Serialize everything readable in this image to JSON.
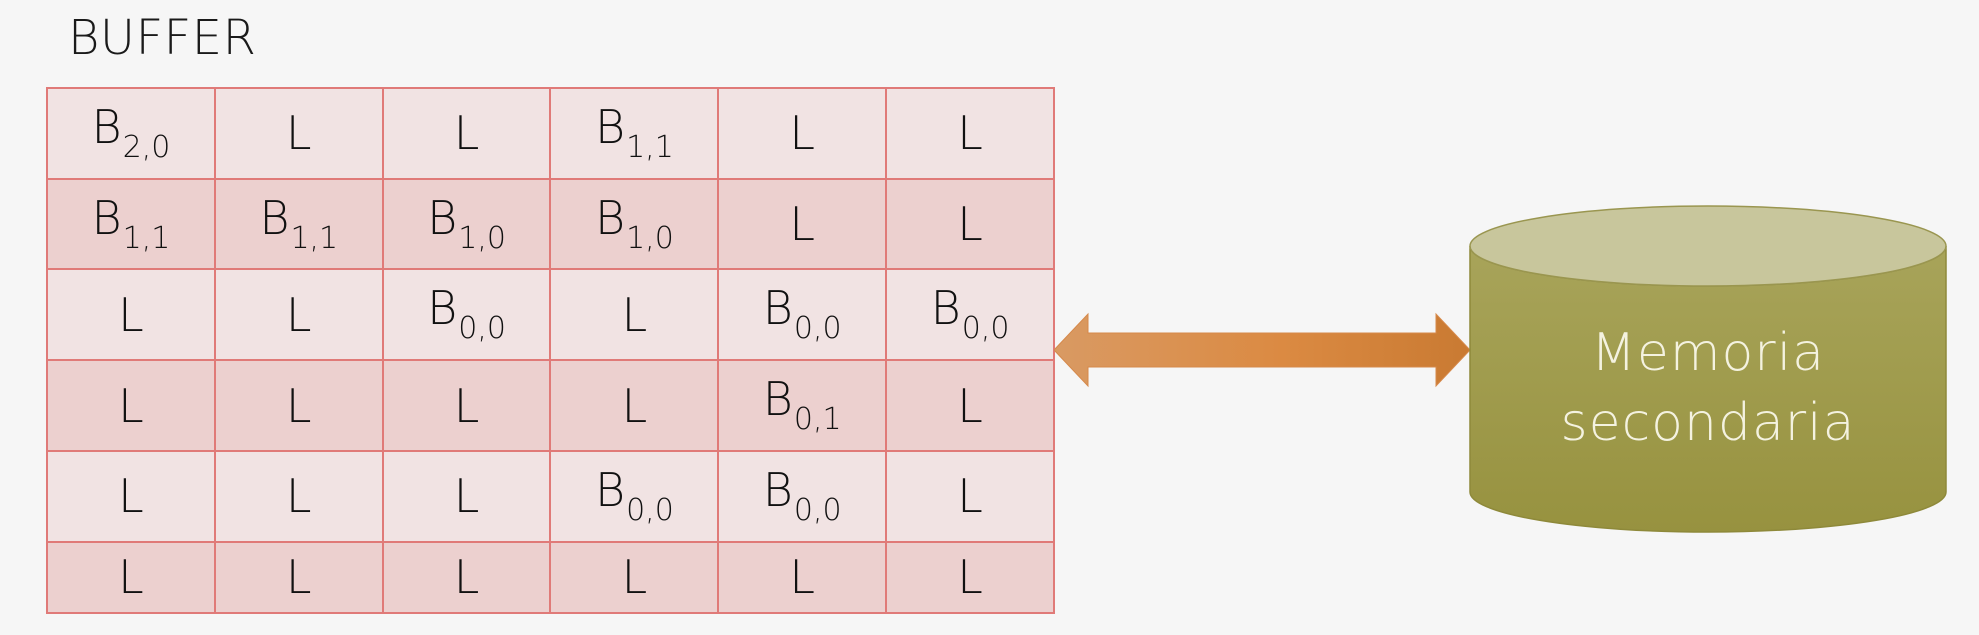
{
  "title": "BUFFER",
  "buffer": {
    "rows": [
      [
        {
          "main": "B",
          "sub": "2,0"
        },
        {
          "main": "L",
          "sub": ""
        },
        {
          "main": "L",
          "sub": ""
        },
        {
          "main": "B",
          "sub": "1,1"
        },
        {
          "main": "L",
          "sub": ""
        },
        {
          "main": "L",
          "sub": ""
        }
      ],
      [
        {
          "main": "B",
          "sub": "1,1"
        },
        {
          "main": "B",
          "sub": "1,1"
        },
        {
          "main": "B",
          "sub": "1,0"
        },
        {
          "main": "B",
          "sub": "1,0"
        },
        {
          "main": "L",
          "sub": ""
        },
        {
          "main": "L",
          "sub": ""
        }
      ],
      [
        {
          "main": "L",
          "sub": ""
        },
        {
          "main": "L",
          "sub": ""
        },
        {
          "main": "B",
          "sub": "0,0"
        },
        {
          "main": "L",
          "sub": ""
        },
        {
          "main": "B",
          "sub": "0,0"
        },
        {
          "main": "B",
          "sub": "0,0"
        }
      ],
      [
        {
          "main": "L",
          "sub": ""
        },
        {
          "main": "L",
          "sub": ""
        },
        {
          "main": "L",
          "sub": ""
        },
        {
          "main": "L",
          "sub": ""
        },
        {
          "main": "B",
          "sub": "0,1"
        },
        {
          "main": "L",
          "sub": ""
        }
      ],
      [
        {
          "main": "L",
          "sub": ""
        },
        {
          "main": "L",
          "sub": ""
        },
        {
          "main": "L",
          "sub": ""
        },
        {
          "main": "B",
          "sub": "0,0"
        },
        {
          "main": "B",
          "sub": "0,0"
        },
        {
          "main": "L",
          "sub": ""
        }
      ],
      [
        {
          "main": "L",
          "sub": ""
        },
        {
          "main": "L",
          "sub": ""
        },
        {
          "main": "L",
          "sub": ""
        },
        {
          "main": "L",
          "sub": ""
        },
        {
          "main": "L",
          "sub": ""
        },
        {
          "main": "L",
          "sub": ""
        }
      ]
    ]
  },
  "storage": {
    "label_line1": "Memoria",
    "label_line2": "secondaria"
  },
  "icons": {
    "arrow": "double-arrow-icon",
    "storage": "cylinder-disk-icon"
  },
  "colors": {
    "cell_border": "#e07a78",
    "row_light": "#f1e3e3",
    "row_dark": "#ecd0cf",
    "arrow_start": "#d99a63",
    "arrow_end": "#c97a32",
    "cylinder_body": "#9c9848",
    "cylinder_top": "#c8c69c"
  }
}
